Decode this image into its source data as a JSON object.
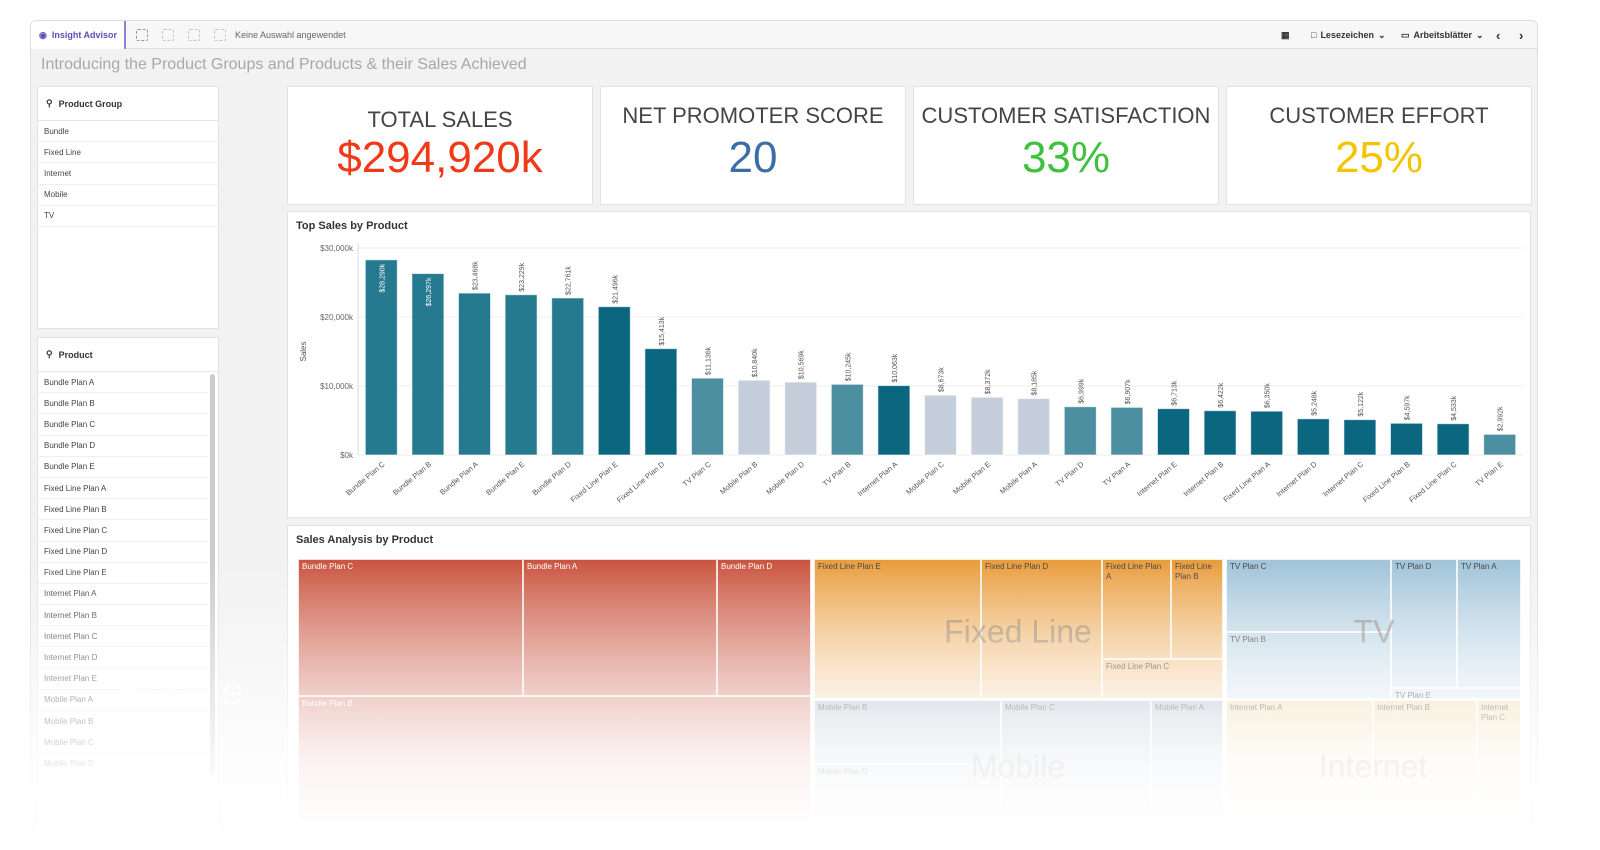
{
  "toolbar": {
    "insight_advisor": "Insight Advisor",
    "selection_status": "Keine Auswahl angewendet",
    "bookmarks": "Lesezeichen",
    "sheets": "Arbeitsblätter"
  },
  "page_title": "Introducing the Product Groups and Products & their Sales Achieved",
  "product_group_filter": {
    "title": "Product Group",
    "items": [
      "Bundle",
      "Fixed Line",
      "Internet",
      "Mobile",
      "TV"
    ]
  },
  "product_filter": {
    "title": "Product",
    "items": [
      "Bundle Plan A",
      "Bundle Plan B",
      "Bundle Plan C",
      "Bundle Plan D",
      "Bundle Plan E",
      "Fixed Line Plan A",
      "Fixed Line Plan B",
      "Fixed Line Plan C",
      "Fixed Line Plan D",
      "Fixed Line Plan E",
      "Internet Plan A",
      "Internet Plan B",
      "Internet Plan C",
      "Internet Plan D",
      "Internet Plan E",
      "Mobile Plan A",
      "Mobile Plan B",
      "Mobile Plan C",
      "Mobile Plan D"
    ]
  },
  "kpis": [
    {
      "label": "TOTAL SALES",
      "value": "$294,920k",
      "color": "#f03a17"
    },
    {
      "label": "NET PROMOTER SCORE",
      "value": "20",
      "color": "#3a6ea5"
    },
    {
      "label": "CUSTOMER SATISFACTION",
      "value": "33%",
      "color": "#3ec23e"
    },
    {
      "label": "CUSTOMER EFFORT",
      "value": "25%",
      "color": "#f5c400"
    }
  ],
  "chart_data": {
    "type": "bar",
    "title": "Top Sales by Product",
    "ylabel": "Sales",
    "xlabel": "",
    "ylim": [
      0,
      30000
    ],
    "yticks": [
      "$0k",
      "$10,000k",
      "$20,000k",
      "$30,000k"
    ],
    "categories": [
      "Bundle Plan C",
      "Bundle Plan B",
      "Bundle Plan A",
      "Bundle Plan E",
      "Bundle Plan D",
      "Fixed Line Plan E",
      "Fixed Line Plan D",
      "TV Plan C",
      "Mobile Plan B",
      "Mobile Plan D",
      "TV Plan B",
      "Internet Plan A",
      "Mobile Plan C",
      "Mobile Plan E",
      "Mobile Plan A",
      "TV Plan D",
      "TV Plan A",
      "Internet Plan E",
      "Internet Plan B",
      "Fixed Line Plan A",
      "Internet Plan D",
      "Internet Plan C",
      "Fixed Line Plan B",
      "Fixed Line Plan C",
      "TV Plan E"
    ],
    "values": [
      28290,
      26297,
      23468,
      23229,
      22761,
      21496,
      15413,
      11136,
      10840,
      10569,
      10245,
      10063,
      8673,
      8372,
      8185,
      6999,
      6907,
      6713,
      6422,
      6350,
      5248,
      5122,
      4597,
      4533,
      2992
    ],
    "labels": [
      "$28,290k",
      "$26,297k",
      "$23,468k",
      "$23,229k",
      "$22,761k",
      "$21,496k",
      "$15,413k",
      "$11,136k",
      "$10,840k",
      "$10,569k",
      "$10,245k",
      "$10,063k",
      "$8,673k",
      "$8,372k",
      "$8,185k",
      "$6,999k",
      "$6,907k",
      "$6,713k",
      "$6,422k",
      "$6,350k",
      "$5,248k",
      "$5,122k",
      "$4,597k",
      "$4,533k",
      "$2,992k"
    ],
    "group_colors": {
      "Bundle": "#267a8f",
      "Fixed Line": "#0b6680",
      "TV": "#4c8fa1",
      "Mobile": "#c5cfdb",
      "Internet": "#0b6680"
    }
  },
  "treemap": {
    "title": "Sales Analysis by Product",
    "groups": [
      {
        "name": "Bundle",
        "color": "#c9543f"
      },
      {
        "name": "Fixed Line",
        "color": "#e99b3a"
      },
      {
        "name": "TV",
        "color": "#9fc3d8"
      },
      {
        "name": "Mobile",
        "color": "#b9c2cf"
      },
      {
        "name": "Internet",
        "color": "#f0ddb0"
      }
    ],
    "cells": [
      "Bundle Plan C",
      "Bundle Plan A",
      "Bundle Plan D",
      "Bundle Plan B",
      "Fixed Line Plan E",
      "Fixed Line Plan D",
      "Fixed Line Plan A",
      "Fixed Line Plan B",
      "Fixed Line Plan C",
      "TV Plan C",
      "TV Plan B",
      "TV Plan D",
      "TV Plan A",
      "TV Plan E",
      "Mobile Plan B",
      "Mobile Plan C",
      "Mobile Plan A",
      "Mobile Plan D",
      "Internet Plan A",
      "Internet Plan B",
      "Internet Plan C"
    ]
  }
}
